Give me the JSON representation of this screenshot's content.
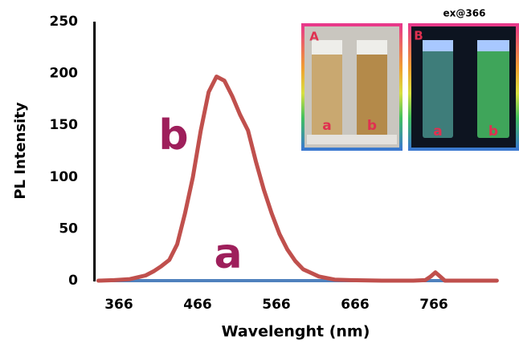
{
  "chart_data": {
    "type": "line",
    "xlabel": "Wavelenght (nm)",
    "ylabel": "PL Intensity",
    "x": [
      340,
      360,
      380,
      400,
      410,
      420,
      430,
      440,
      450,
      460,
      470,
      480,
      490,
      500,
      510,
      520,
      530,
      540,
      550,
      560,
      570,
      580,
      590,
      600,
      620,
      640,
      660,
      700,
      740,
      755,
      762,
      768,
      774,
      780,
      800,
      830,
      846
    ],
    "series": [
      {
        "name": "b",
        "color": "#c0504d",
        "values": [
          0,
          0.5,
          1.5,
          5,
          9,
          14,
          20,
          35,
          65,
          100,
          145,
          182,
          197,
          193,
          178,
          160,
          145,
          115,
          88,
          65,
          45,
          30,
          19,
          11,
          4,
          1,
          0.5,
          0,
          0,
          0.5,
          4,
          8,
          4,
          0,
          0,
          0,
          0
        ]
      },
      {
        "name": "a",
        "color": "#4f81bd",
        "values": [
          0,
          0,
          0,
          0,
          0,
          0,
          0,
          0,
          0,
          0,
          0,
          0,
          0,
          0,
          0,
          0,
          0,
          0,
          0,
          0,
          0,
          0,
          0,
          0,
          0,
          0,
          0,
          0,
          0,
          0,
          0,
          0,
          0,
          0,
          0,
          0,
          0
        ]
      }
    ],
    "xlim": [
      335,
      846
    ],
    "ylim": [
      0,
      250
    ],
    "xticks": [
      366,
      466,
      566,
      666,
      766
    ],
    "yticks": [
      0,
      50,
      100,
      150,
      200,
      250
    ],
    "annotation_color": "#9e1f5b",
    "insets": [
      {
        "label": "A",
        "samples": [
          "a",
          "b"
        ]
      },
      {
        "label": "B",
        "title": "ex@366",
        "samples": [
          "a",
          "b"
        ]
      }
    ]
  }
}
